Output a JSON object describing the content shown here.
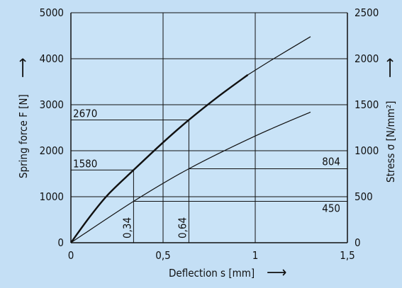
{
  "chart_data": {
    "type": "line",
    "x": {
      "label": "Deflection s [mm]",
      "range": [
        0,
        1.5
      ],
      "ticks": [
        0,
        0.5,
        1,
        1.5
      ],
      "tick_labels": [
        "0",
        "0,5",
        "1",
        "1,5"
      ]
    },
    "y_left": {
      "label": "Spring force F [N]",
      "range": [
        0,
        5000
      ],
      "ticks": [
        0,
        1000,
        2000,
        3000,
        4000,
        5000
      ],
      "tick_labels": [
        "0",
        "1000",
        "2000",
        "3000",
        "4000",
        "5000"
      ]
    },
    "y_right": {
      "label": "Stress σ [N/mm²]",
      "range": [
        0,
        2500
      ],
      "ticks": [
        0,
        500,
        1000,
        1500,
        2000,
        2500
      ],
      "tick_labels": [
        "0",
        "500",
        "1000",
        "1500",
        "2000",
        "2500"
      ]
    },
    "grid": true,
    "series": [
      {
        "axis": "left",
        "style": "bold",
        "x": [
          0,
          0.1,
          0.2,
          0.34,
          0.5,
          0.64,
          0.8,
          0.96
        ],
        "y": [
          0,
          550,
          1040,
          1580,
          2180,
          2670,
          3180,
          3650
        ]
      },
      {
        "axis": "right",
        "style": "thin",
        "x": [
          0.96,
          1.1,
          1.3
        ],
        "y": [
          1825,
          2000,
          2240
        ]
      },
      {
        "axis": "right",
        "style": "thin",
        "x": [
          0,
          0.34,
          0.64,
          1.0,
          1.3
        ],
        "y": [
          0,
          450,
          804,
          1160,
          1420
        ]
      }
    ],
    "annotations": [
      {
        "text": "2670",
        "axis": "left",
        "y": 2670,
        "x": 0.64
      },
      {
        "text": "1580",
        "axis": "left",
        "y": 1580,
        "x": 0.34
      },
      {
        "text": "804",
        "axis": "right",
        "y": 804,
        "x": 0.64
      },
      {
        "text": "450",
        "axis": "right",
        "y": 450,
        "x": 0.34
      },
      {
        "text": "0,34",
        "x": 0.34
      },
      {
        "text": "0,64",
        "x": 0.64
      }
    ],
    "arrow_glyph": "⟶"
  }
}
